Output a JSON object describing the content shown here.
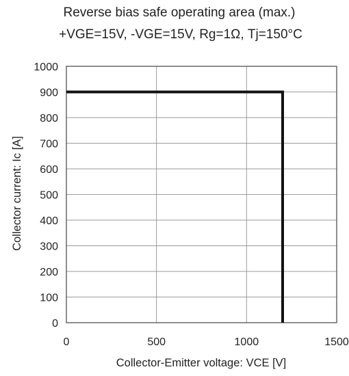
{
  "chart_data": {
    "type": "line",
    "title": "Reverse bias safe operating area (max.)",
    "subtitle": "+VGE=15V, -VGE=15V, Rg=1Ω, Tj=150°C",
    "xlabel": "Collector-Emitter voltage: VCE [V]",
    "ylabel": "Collector current: Ic [A]",
    "xlim": [
      0,
      1500
    ],
    "ylim": [
      0,
      1000
    ],
    "xticks": [
      0,
      500,
      1000,
      1500
    ],
    "yticks": [
      0,
      100,
      200,
      300,
      400,
      500,
      600,
      700,
      800,
      900,
      1000
    ],
    "x_tick_labels": [
      "0",
      "500",
      "1000",
      "1500"
    ],
    "y_tick_labels": [
      "0",
      "100",
      "200",
      "300",
      "400",
      "500",
      "600",
      "700",
      "800",
      "900",
      "1000"
    ],
    "grid": true,
    "series": [
      {
        "x": [
          0,
          1200,
          1200
        ],
        "y": [
          900,
          900,
          0
        ],
        "color": "#111111"
      }
    ]
  }
}
